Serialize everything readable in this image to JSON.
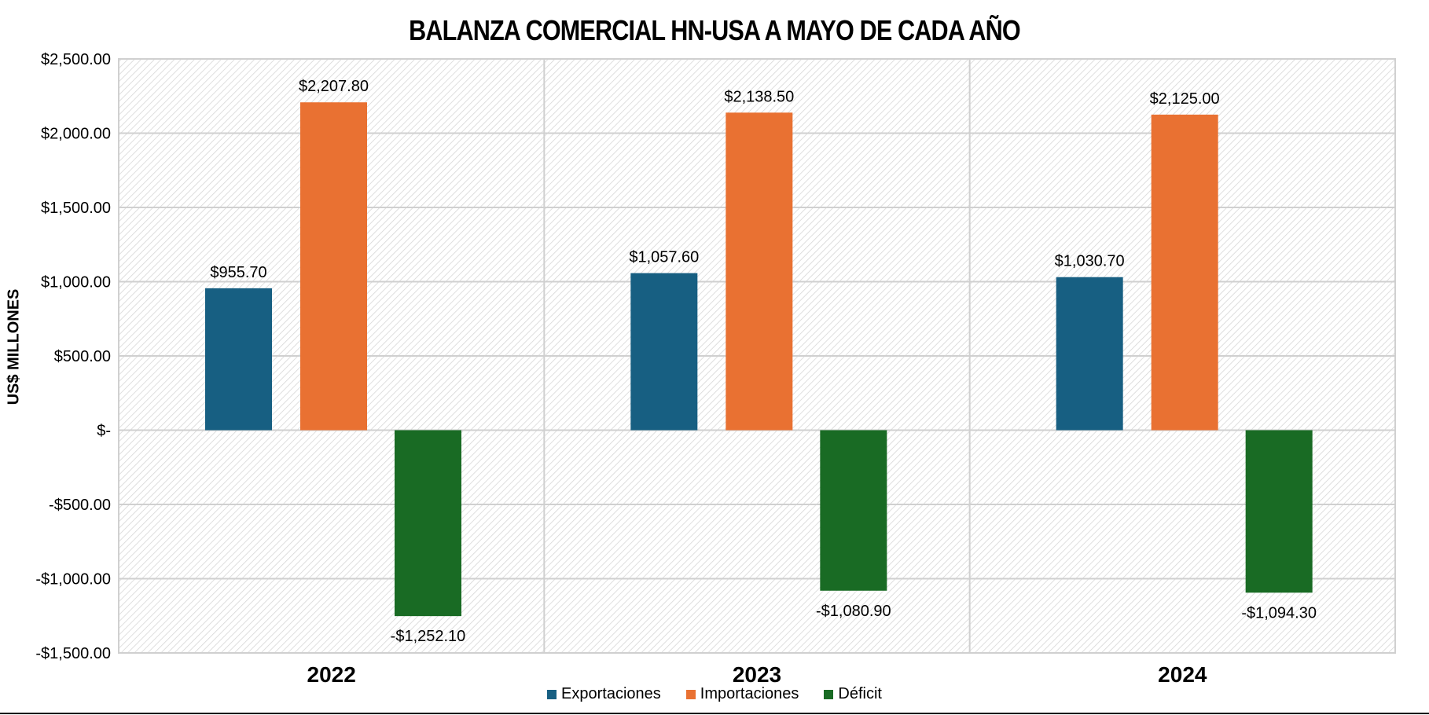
{
  "chart_data": {
    "type": "bar",
    "title": "BALANZA COMERCIAL HN-USA A MAYO DE CADA AÑO",
    "xlabel": "",
    "ylabel": "US$ MILLONES",
    "ylim": [
      -1500,
      2500
    ],
    "yticks": [
      2500,
      2000,
      1500,
      1000,
      500,
      0,
      -500,
      -1000,
      -1500
    ],
    "ytick_labels": [
      "$2,500.00",
      "$2,000.00",
      "$1,500.00",
      "$1,000.00",
      "$500.00",
      "$-",
      "-$500.00",
      "-$1,000.00",
      "-$1,500.00"
    ],
    "categories": [
      "2022",
      "2023",
      "2024"
    ],
    "series": [
      {
        "name": "Exportaciones",
        "color": "#175F82",
        "values": [
          955.7,
          1057.6,
          1030.7
        ],
        "labels": [
          "$955.70",
          "$1,057.60",
          "$1,030.70"
        ]
      },
      {
        "name": "Importaciones",
        "color": "#E97132",
        "values": [
          2207.8,
          2138.5,
          2125.0
        ],
        "labels": [
          "$2,207.80",
          "$2,138.50",
          "$2,125.00"
        ]
      },
      {
        "name": "Déficit",
        "color": "#196B24",
        "values": [
          -1252.1,
          -1080.9,
          -1094.3
        ],
        "labels": [
          "-$1,252.10",
          "-$1,080.90",
          "-$1,094.30"
        ]
      }
    ],
    "grid": true,
    "legend": "bottom"
  }
}
